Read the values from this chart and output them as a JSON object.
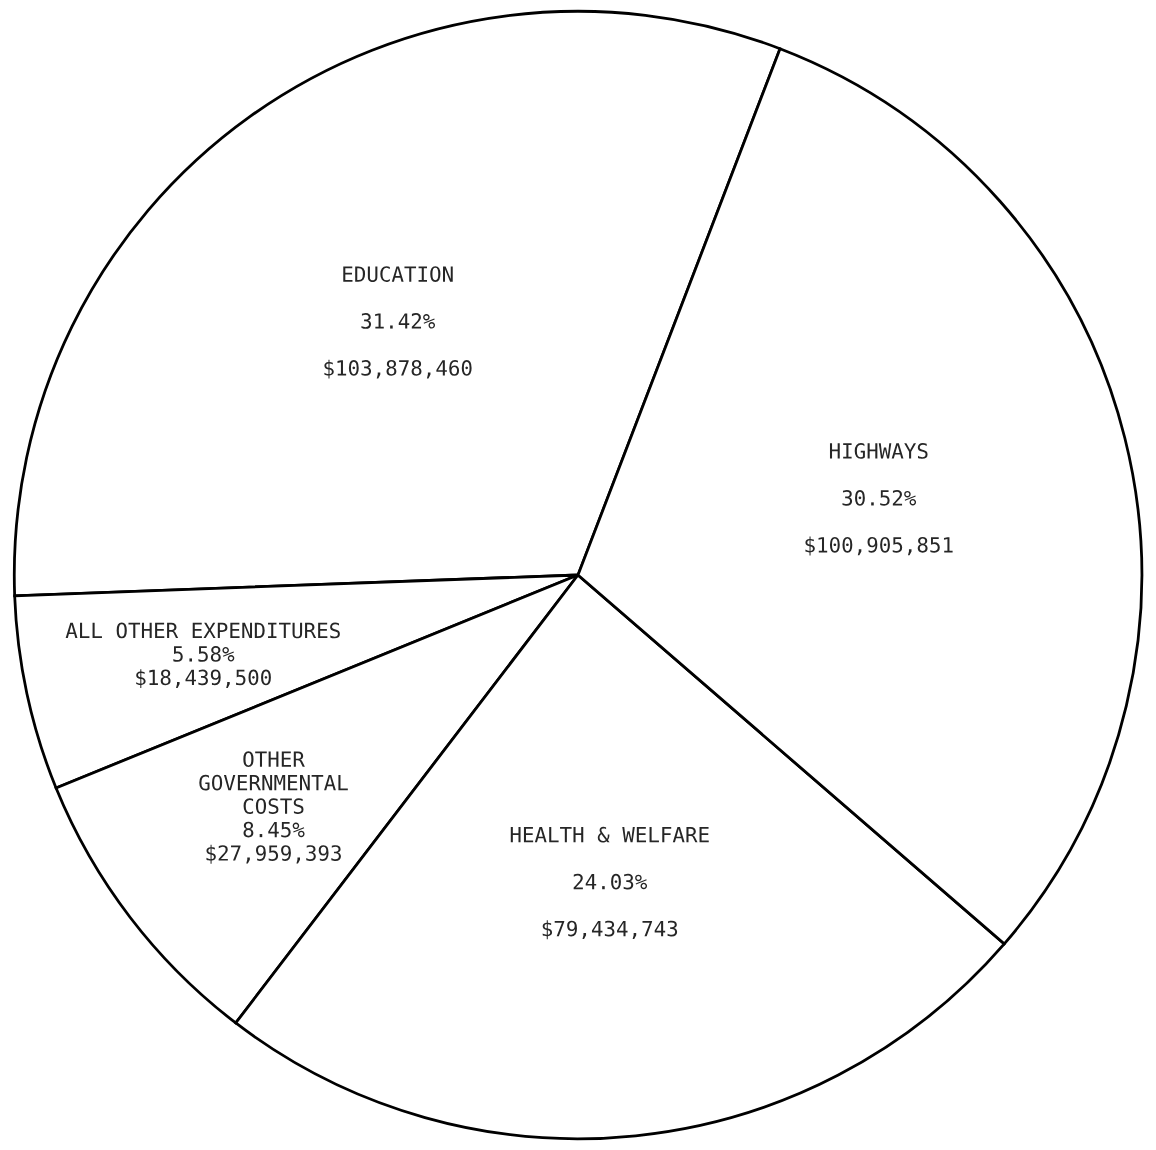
{
  "chart_data": {
    "type": "pie",
    "categories": [
      "EDUCATION",
      "ALL OTHER EXPENDITURES",
      "OTHER\nGOVERNMENTAL\nCOSTS",
      "HEALTH & WELFARE",
      "HIGHWAYS"
    ],
    "values": [
      31.42,
      5.58,
      8.45,
      24.03,
      30.52
    ],
    "colors": [
      "#ffffff",
      "#ffffff",
      "#ffffff",
      "#ffffff",
      "#ffffff"
    ],
    "value_labels": [
      "31.42%\n$103,878,460",
      "5.58%\n$18,439,500",
      "8.45%\n$27,959,393",
      "24.03%\n$79,434,743",
      "30.52%\n$100,905,851"
    ]
  }
}
